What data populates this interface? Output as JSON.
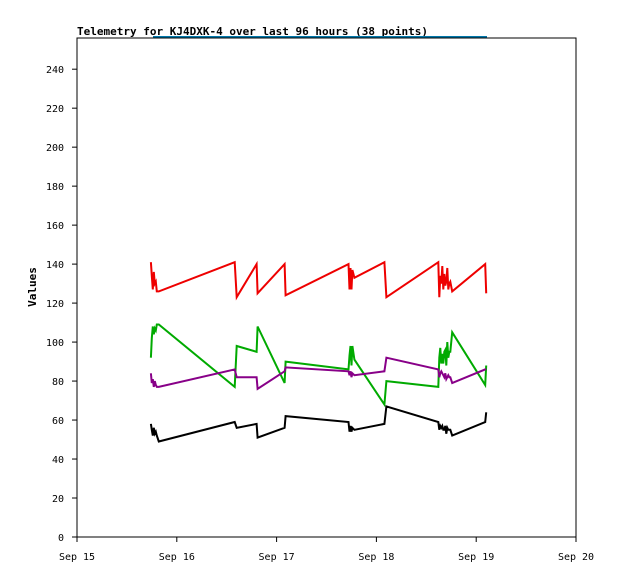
{
  "chart_data": {
    "type": "line",
    "title": "Telemetry for KJ4DXK-4 over last 96 hours (38 points)",
    "xlabel": "",
    "ylabel": "Values",
    "ylim": [
      0,
      256
    ],
    "xlim": [
      0,
      5
    ],
    "x_ticks": [
      {
        "value": 0,
        "label": "Sep 15"
      },
      {
        "value": 1,
        "label": "Sep 16"
      },
      {
        "value": 2,
        "label": "Sep 17"
      },
      {
        "value": 3,
        "label": "Sep 18"
      },
      {
        "value": 4,
        "label": "Sep 19"
      },
      {
        "value": 5,
        "label": "Sep 20"
      }
    ],
    "y_ticks": [
      0,
      20,
      40,
      60,
      80,
      100,
      120,
      140,
      160,
      180,
      200,
      220,
      240
    ],
    "grid": false,
    "legend": "none",
    "series": [
      {
        "color": "#ee0000",
        "x": [
          0.74,
          0.75,
          0.76,
          0.77,
          0.78,
          0.79,
          0.8,
          0.82,
          1.58,
          1.6,
          1.8,
          1.81,
          2.08,
          2.09,
          2.72,
          2.73,
          2.74,
          2.75,
          2.76,
          2.78,
          3.08,
          3.1,
          3.62,
          3.63,
          3.64,
          3.65,
          3.66,
          3.67,
          3.68,
          3.69,
          3.7,
          3.71,
          3.72,
          3.73,
          3.74,
          3.76,
          4.09,
          4.1
        ],
        "y": [
          141,
          134,
          127,
          136,
          130,
          131,
          126,
          126,
          141,
          123,
          140,
          125,
          140,
          124,
          140,
          127,
          138,
          127,
          137,
          133,
          141,
          123,
          141,
          123,
          134,
          130,
          139,
          127,
          135,
          129,
          131,
          138,
          127,
          130,
          131,
          126,
          140,
          125
        ]
      },
      {
        "color": "#00aa00",
        "x": [
          0.74,
          0.75,
          0.76,
          0.77,
          0.78,
          0.79,
          0.8,
          0.82,
          1.58,
          1.6,
          1.8,
          1.81,
          2.08,
          2.09,
          2.72,
          2.73,
          2.74,
          2.75,
          2.76,
          2.78,
          3.08,
          3.1,
          3.62,
          3.63,
          3.64,
          3.65,
          3.66,
          3.67,
          3.68,
          3.69,
          3.7,
          3.71,
          3.72,
          3.73,
          3.74,
          3.76,
          4.09,
          4.1
        ],
        "y": [
          92,
          102,
          108,
          104,
          107,
          106,
          109,
          109,
          77,
          98,
          95,
          108,
          79,
          90,
          86,
          93,
          98,
          88,
          98,
          91,
          68,
          80,
          77,
          92,
          97,
          89,
          94,
          89,
          95,
          96,
          88,
          100,
          92,
          95,
          95,
          105,
          78,
          88
        ]
      },
      {
        "color": "#880088",
        "x": [
          0.74,
          0.75,
          0.76,
          0.77,
          0.78,
          0.79,
          0.8,
          0.82,
          1.58,
          1.6,
          1.8,
          1.81,
          2.08,
          2.09,
          2.72,
          2.73,
          2.74,
          2.75,
          2.76,
          2.78,
          3.08,
          3.1,
          3.62,
          3.63,
          3.64,
          3.65,
          3.66,
          3.67,
          3.68,
          3.69,
          3.7,
          3.71,
          3.72,
          3.73,
          3.74,
          3.76,
          4.09,
          4.1
        ],
        "y": [
          84,
          79,
          81,
          77,
          80,
          78,
          77,
          77,
          86,
          82,
          82,
          76,
          85,
          87,
          85,
          83,
          85,
          82,
          84,
          83,
          85,
          92,
          86,
          82,
          84,
          85,
          84,
          83,
          82,
          84,
          81,
          82,
          83,
          82,
          82,
          79,
          86,
          86
        ]
      },
      {
        "color": "#000000",
        "x": [
          0.74,
          0.75,
          0.76,
          0.77,
          0.78,
          0.79,
          0.8,
          0.82,
          1.58,
          1.6,
          1.8,
          1.81,
          2.08,
          2.09,
          2.72,
          2.73,
          2.74,
          2.75,
          2.76,
          2.78,
          3.08,
          3.1,
          3.62,
          3.63,
          3.64,
          3.65,
          3.66,
          3.67,
          3.68,
          3.69,
          3.7,
          3.71,
          3.72,
          3.73,
          3.74,
          3.76,
          4.09,
          4.1
        ],
        "y": [
          58,
          55,
          52,
          56,
          53,
          54,
          52,
          49,
          59,
          56,
          58,
          51,
          56,
          62,
          59,
          54,
          57,
          54,
          56,
          55,
          58,
          67,
          59,
          55,
          57,
          56,
          57,
          55,
          55,
          57,
          53,
          56,
          55,
          55,
          55,
          52,
          59,
          64
        ]
      }
    ]
  }
}
